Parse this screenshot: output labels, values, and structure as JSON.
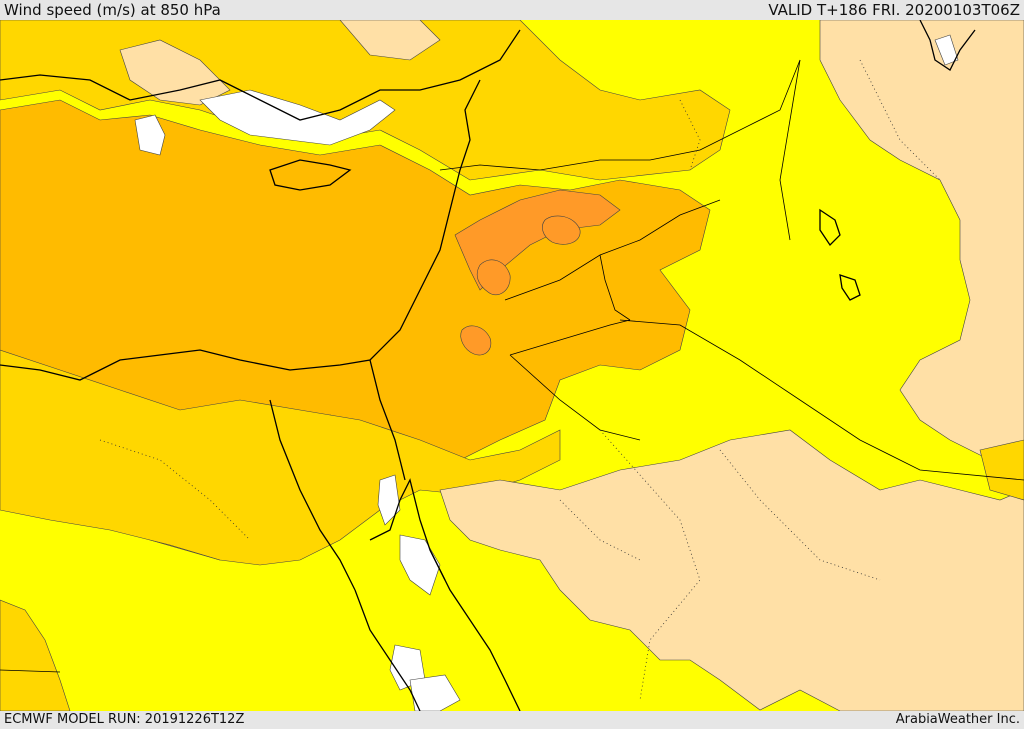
{
  "header": {
    "title": "Wind speed (m/s) at 850 hPa",
    "valid": "VALID T+186 FRI. 20200103T06Z"
  },
  "footer": {
    "model_run": "ECMWF MODEL RUN: 20191226T12Z",
    "credit": "ArabiaWeather Inc."
  },
  "colors": {
    "calm": "#ffffff",
    "low": "#ffe0a6",
    "moderate": "#ffff00",
    "fresh": "#ffd700",
    "strong": "#ffbb00",
    "stronger": "#ff9a28",
    "border": "#000000"
  }
}
